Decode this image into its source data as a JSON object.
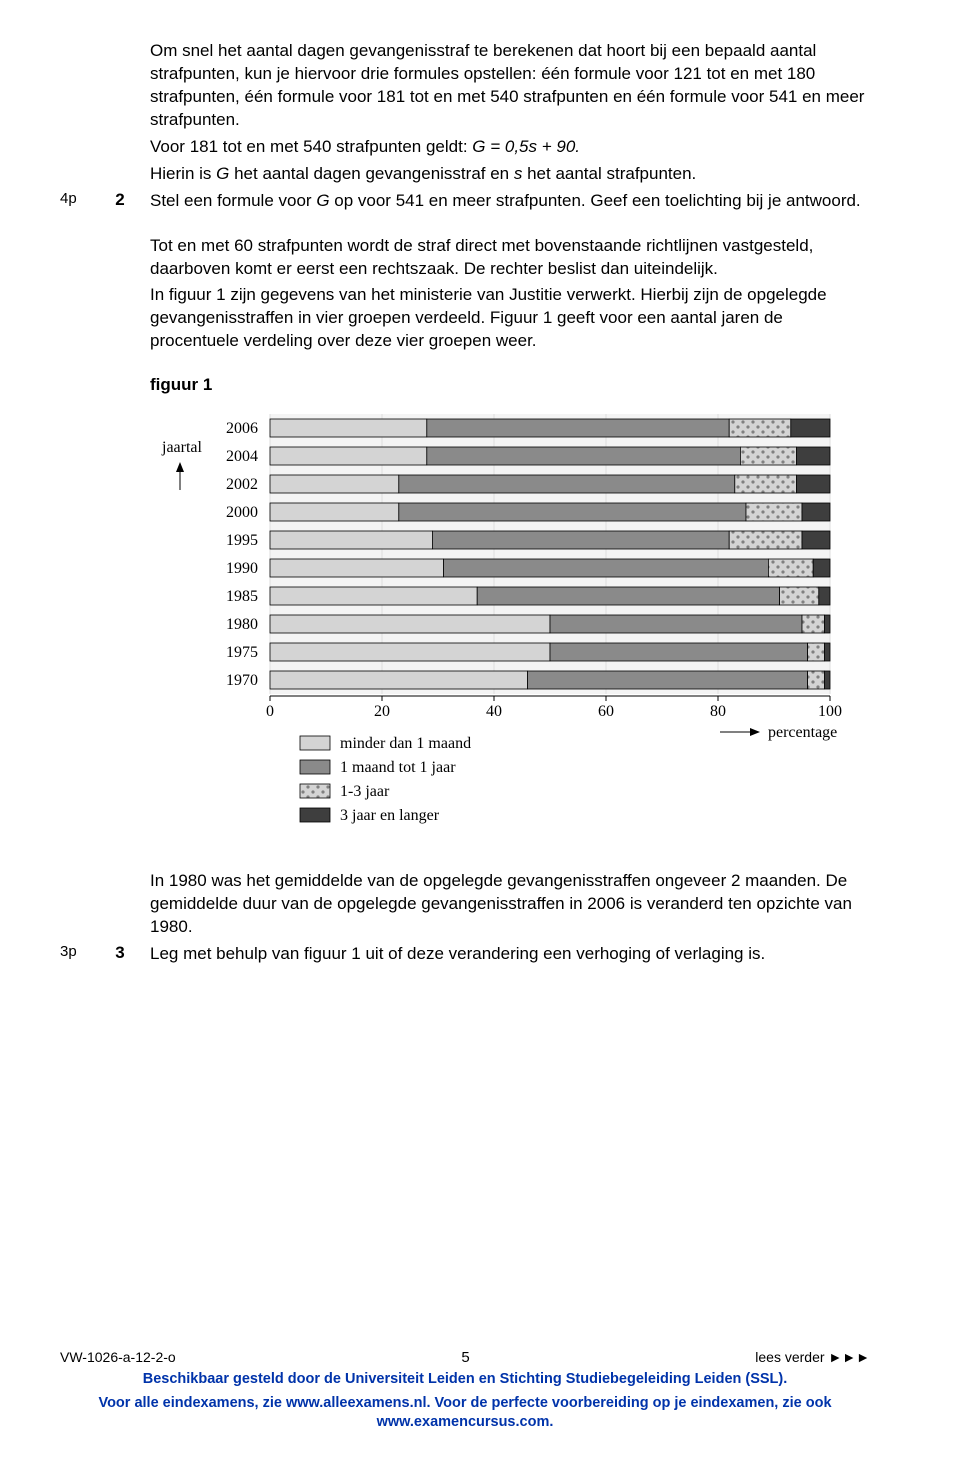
{
  "para1": "Om snel het aantal dagen gevangenisstraf te berekenen dat hoort bij een bepaald aantal strafpunten, kun je hiervoor drie formules opstellen: één formule voor 121 tot en met 180 strafpunten, één formule voor 181 tot en met 540 strafpunten en één formule voor 541 en meer strafpunten.",
  "para2_pre": "Voor 181 tot en met 540 strafpunten geldt: ",
  "para2_formula": "G = 0,5s + 90.",
  "para3_pre": "Hierin is ",
  "para3_g": "G",
  "para3_mid": " het aantal dagen gevangenisstraf en ",
  "para3_s": "s",
  "para3_post": " het aantal strafpunten.",
  "q2_points": "4p",
  "q2_num": "2",
  "q2_text_pre": "Stel een formule voor ",
  "q2_g": "G",
  "q2_text_post": " op voor 541 en meer strafpunten. Geef een toelichting bij je antwoord.",
  "para4": "Tot en met 60 strafpunten wordt de straf direct met bovenstaande richtlijnen vastgesteld, daarboven komt er eerst een rechtszaak. De rechter beslist dan uiteindelijk.",
  "para5": "In figuur 1 zijn gegevens van het ministerie van Justitie verwerkt. Hierbij zijn de opgelegde gevangenisstraffen in vier groepen verdeeld. Figuur 1 geeft voor een aantal jaren de procentuele verdeling over deze vier groepen weer.",
  "figure_label": "figuur 1",
  "chart": {
    "y_axis_label": "jaartal",
    "x_axis_label": "percentage",
    "years": [
      "2006",
      "2004",
      "2002",
      "2000",
      "1995",
      "1990",
      "1985",
      "1980",
      "1975",
      "1970"
    ],
    "x_ticks": [
      0,
      20,
      40,
      60,
      80,
      100
    ],
    "colors": {
      "seg1": "#d4d4d4",
      "seg2": "#8a8a8a",
      "seg3_base": "#d4d4d4",
      "seg3_dot": "#808080",
      "seg4": "#3e3e3e",
      "border": "#000000",
      "grid": "#dedede",
      "plot_bg": "#f4f4f4"
    },
    "bars": [
      {
        "seg1": 28,
        "seg2": 54,
        "seg3": 11,
        "seg4": 7
      },
      {
        "seg1": 28,
        "seg2": 56,
        "seg3": 10,
        "seg4": 6
      },
      {
        "seg1": 23,
        "seg2": 60,
        "seg3": 11,
        "seg4": 6
      },
      {
        "seg1": 23,
        "seg2": 62,
        "seg3": 10,
        "seg4": 5
      },
      {
        "seg1": 29,
        "seg2": 53,
        "seg3": 13,
        "seg4": 5
      },
      {
        "seg1": 31,
        "seg2": 58,
        "seg3": 8,
        "seg4": 3
      },
      {
        "seg1": 37,
        "seg2": 54,
        "seg3": 7,
        "seg4": 2
      },
      {
        "seg1": 50,
        "seg2": 45,
        "seg3": 4,
        "seg4": 1
      },
      {
        "seg1": 50,
        "seg2": 46,
        "seg3": 3,
        "seg4": 1
      },
      {
        "seg1": 46,
        "seg2": 50,
        "seg3": 3,
        "seg4": 1
      }
    ],
    "legend": [
      "minder dan 1 maand",
      "1 maand tot 1 jaar",
      "1-3 jaar",
      "3 jaar en langer"
    ]
  },
  "para6": "In 1980 was het gemiddelde van de opgelegde gevangenisstraffen ongeveer 2 maanden. De gemiddelde duur van de opgelegde gevangenisstraffen in 2006 is veranderd ten opzichte van 1980.",
  "q3_points": "3p",
  "q3_num": "3",
  "q3_text": "Leg met behulp van figuur 1 uit of deze verandering een verhoging of verlaging is.",
  "footer": {
    "left": "VW-1026-a-12-2-o",
    "mid": "5",
    "right": "lees verder ►►►",
    "blue1": "Beschikbaar gesteld door de Universiteit Leiden en Stichting Studiebegeleiding Leiden (SSL).",
    "blue2": "Voor alle eindexamens, zie www.alleexamens.nl. Voor de perfecte voorbereiding op je eindexamen, zie ook www.examencursus.com."
  }
}
